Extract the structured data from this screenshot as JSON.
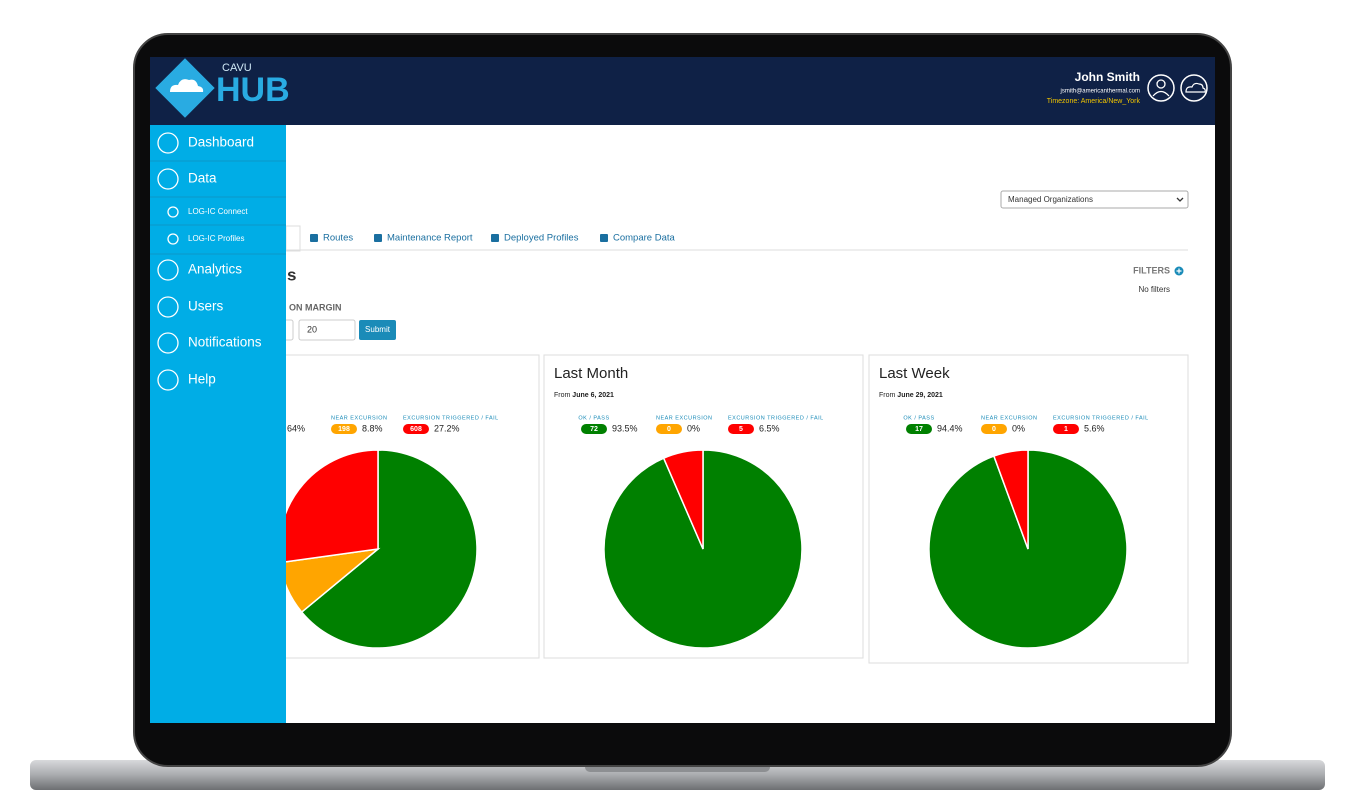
{
  "header": {
    "logo_small": "CAVU",
    "logo": "HUB",
    "user_name": "John Smith",
    "user_email": "jsmith@americanthermal.com",
    "timezone": "Timezone: America/New_York"
  },
  "sidebar": {
    "items": [
      "Dashboard",
      "Data",
      "LOG-IC Connect",
      "LOG-IC Profiles",
      "Analytics",
      "Users",
      "Notifications",
      "Help"
    ]
  },
  "org_select": "Managed Organizations",
  "tabs": [
    "Routes",
    "Maintenance Report",
    "Deployed Profiles",
    "Compare Data"
  ],
  "section_title": "s",
  "filters": {
    "label": "FILTERS",
    "status": "No filters"
  },
  "margin": {
    "label": "ON MARGIN",
    "value": "20",
    "button": "Submit"
  },
  "panels": [
    {
      "legend": [
        {
          "percent": 64,
          "percent_label": "64%",
          "color": "#008000"
        },
        {
          "label": "NEAR EXCURSION",
          "count": 198,
          "percent": 8.8,
          "percent_label": "8.8%",
          "color": "#ffa500"
        },
        {
          "label": "EXCURSION TRIGGERED / FAIL",
          "count": 608,
          "percent": 27.2,
          "percent_label": "27.2%",
          "color": "#ff0000"
        }
      ]
    },
    {
      "title": "Last Month",
      "from_label": "From",
      "date": "June 6, 2021",
      "legend": [
        {
          "label": "OK / PASS",
          "count": 72,
          "percent": 93.5,
          "percent_label": "93.5%",
          "color": "#008000"
        },
        {
          "label": "NEAR EXCURSION",
          "count": 0,
          "percent": 0,
          "percent_label": "0%",
          "color": "#ffa500"
        },
        {
          "label": "EXCURSION TRIGGERED / FAIL",
          "count": 5,
          "percent": 6.5,
          "percent_label": "6.5%",
          "color": "#ff0000"
        }
      ]
    },
    {
      "title": "Last Week",
      "from_label": "From",
      "date": "June 29, 2021",
      "legend": [
        {
          "label": "OK / PASS",
          "count": 17,
          "percent": 94.4,
          "percent_label": "94.4%",
          "color": "#008000"
        },
        {
          "label": "NEAR EXCURSION",
          "count": 0,
          "percent": 0,
          "percent_label": "0%",
          "color": "#ffa500"
        },
        {
          "label": "EXCURSION TRIGGERED / FAIL",
          "count": 1,
          "percent": 5.6,
          "percent_label": "5.6%",
          "color": "#ff0000"
        }
      ]
    }
  ]
}
